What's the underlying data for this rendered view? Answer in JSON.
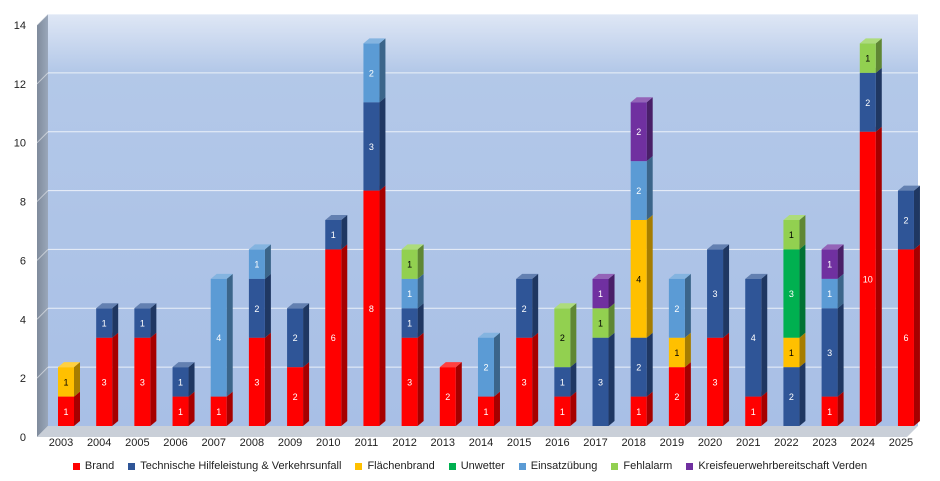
{
  "chart_data": {
    "type": "bar",
    "stacked": true,
    "title": "",
    "xlabel": "",
    "ylabel": "",
    "ylim": [
      0,
      14
    ],
    "yticks": [
      0,
      2,
      4,
      6,
      8,
      10,
      12,
      14
    ],
    "grid": true,
    "legend_position": "bottom",
    "categories": [
      "2003",
      "2004",
      "2005",
      "2006",
      "2007",
      "2008",
      "2009",
      "2010",
      "2011",
      "2012",
      "2013",
      "2014",
      "2015",
      "2016",
      "2017",
      "2018",
      "2019",
      "2020",
      "2021",
      "2022",
      "2023",
      "2024",
      "2025"
    ],
    "series": [
      {
        "name": "Brand",
        "color": "#ff0000",
        "values": [
          1,
          3,
          3,
          1,
          1,
          3,
          2,
          6,
          8,
          3,
          2,
          1,
          3,
          1,
          0,
          1,
          2,
          3,
          1,
          0,
          1,
          10,
          6
        ]
      },
      {
        "name": "Technische Hilfeleistung & Verkehrsunfall",
        "color": "#2f5597",
        "values": [
          0,
          1,
          1,
          1,
          0,
          2,
          2,
          1,
          3,
          1,
          0,
          0,
          2,
          1,
          3,
          2,
          0,
          3,
          4,
          2,
          3,
          2,
          2
        ]
      },
      {
        "name": "Flächenbrand",
        "color": "#ffc000",
        "values": [
          1,
          0,
          0,
          0,
          0,
          0,
          0,
          0,
          0,
          0,
          0,
          0,
          0,
          0,
          0,
          4,
          1,
          0,
          0,
          1,
          0,
          0,
          0
        ]
      },
      {
        "name": "Unwetter",
        "color": "#00b050",
        "values": [
          0,
          0,
          0,
          0,
          0,
          0,
          0,
          0,
          0,
          0,
          0,
          0,
          0,
          0,
          0,
          0,
          0,
          0,
          0,
          3,
          0,
          0,
          0
        ]
      },
      {
        "name": "Einsatzübung",
        "color": "#5b9bd5",
        "values": [
          0,
          0,
          0,
          0,
          4,
          1,
          0,
          0,
          2,
          1,
          0,
          2,
          0,
          0,
          0,
          2,
          2,
          0,
          0,
          0,
          1,
          0,
          0
        ]
      },
      {
        "name": "Fehlalarm",
        "color": "#92d050",
        "values": [
          0,
          0,
          0,
          0,
          0,
          0,
          0,
          0,
          0,
          1,
          0,
          0,
          0,
          2,
          1,
          0,
          0,
          0,
          0,
          1,
          0,
          1,
          0
        ]
      },
      {
        "name": "Kreisfeuerwehrbereitschaft Verden",
        "color": "#7030a0",
        "values": [
          0,
          0,
          0,
          0,
          0,
          0,
          0,
          0,
          0,
          0,
          0,
          0,
          0,
          0,
          1,
          2,
          0,
          0,
          0,
          0,
          1,
          0,
          0
        ]
      }
    ]
  }
}
